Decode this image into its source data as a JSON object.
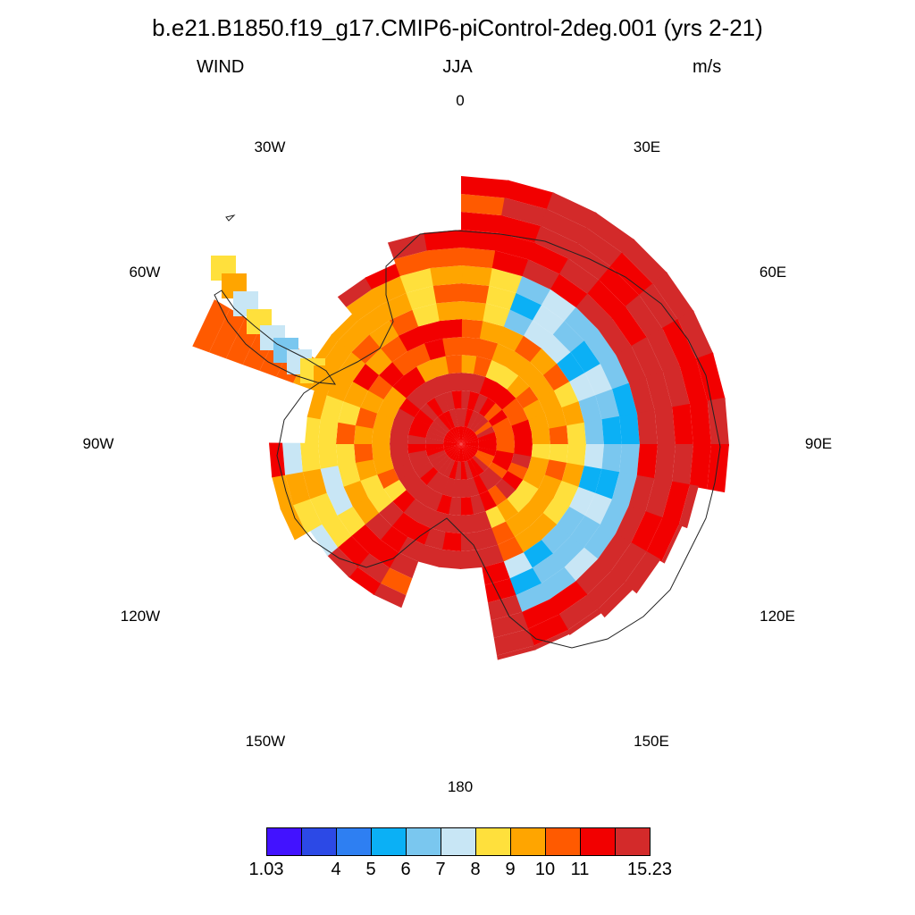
{
  "title": "b.e21.B1850.f19_g17.CMIP6-piControl-2deg.001 (yrs 2-21)",
  "left_label": "WIND",
  "center_label": "JJA",
  "right_label": "m/s",
  "longitude_labels": {
    "lon_0": "0",
    "lon_30e": "30E",
    "lon_60e": "60E",
    "lon_90e": "90E",
    "lon_120e": "120E",
    "lon_150e": "150E",
    "lon_180": "180",
    "lon_150w": "150W",
    "lon_120w": "120W",
    "lon_90w": "90W",
    "lon_60w": "60W",
    "lon_30w": "30W"
  },
  "colorbar": {
    "colors": [
      "#4212ff",
      "#2c49e6",
      "#2e7ff2",
      "#0bb0f5",
      "#7ac7ef",
      "#c8e6f5",
      "#ffe03c",
      "#ffa500",
      "#ff5a00",
      "#f20000",
      "#d32a2a"
    ],
    "labels": {
      "l0": "1.03",
      "l1": "4",
      "l2": "5",
      "l3": "6",
      "l4": "7",
      "l5": "8",
      "l6": "9",
      "l7": "10",
      "l8": "11",
      "l9": "15.23"
    }
  }
}
